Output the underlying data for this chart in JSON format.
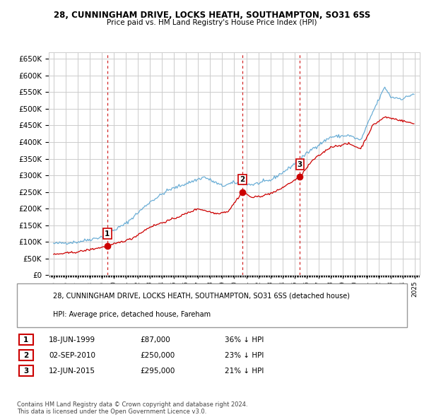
{
  "title": "28, CUNNINGHAM DRIVE, LOCKS HEATH, SOUTHAMPTON, SO31 6SS",
  "subtitle": "Price paid vs. HM Land Registry's House Price Index (HPI)",
  "hpi_color": "#6baed6",
  "price_color": "#cc0000",
  "grid_color": "#cccccc",
  "bg_color": "#ffffff",
  "ylim": [
    0,
    670000
  ],
  "yticks": [
    0,
    50000,
    100000,
    150000,
    200000,
    250000,
    300000,
    350000,
    400000,
    450000,
    500000,
    550000,
    600000,
    650000
  ],
  "ytick_labels": [
    "£0",
    "£50K",
    "£100K",
    "£150K",
    "£200K",
    "£250K",
    "£300K",
    "£350K",
    "£400K",
    "£450K",
    "£500K",
    "£550K",
    "£600K",
    "£650K"
  ],
  "xlim_start": 1994.6,
  "xlim_end": 2025.4,
  "transactions": [
    {
      "date": 1999.46,
      "price": 87000,
      "label": "1"
    },
    {
      "date": 2010.67,
      "price": 250000,
      "label": "2"
    },
    {
      "date": 2015.44,
      "price": 295000,
      "label": "3"
    }
  ],
  "legend_property": "28, CUNNINGHAM DRIVE, LOCKS HEATH, SOUTHAMPTON, SO31 6SS (detached house)",
  "legend_hpi": "HPI: Average price, detached house, Fareham",
  "table_rows": [
    {
      "num": "1",
      "date": "18-JUN-1999",
      "price": "£87,000",
      "note": "36% ↓ HPI"
    },
    {
      "num": "2",
      "date": "02-SEP-2010",
      "price": "£250,000",
      "note": "23% ↓ HPI"
    },
    {
      "num": "3",
      "date": "12-JUN-2015",
      "price": "£295,000",
      "note": "21% ↓ HPI"
    }
  ],
  "footnote": "Contains HM Land Registry data © Crown copyright and database right 2024.\nThis data is licensed under the Open Government Licence v3.0."
}
